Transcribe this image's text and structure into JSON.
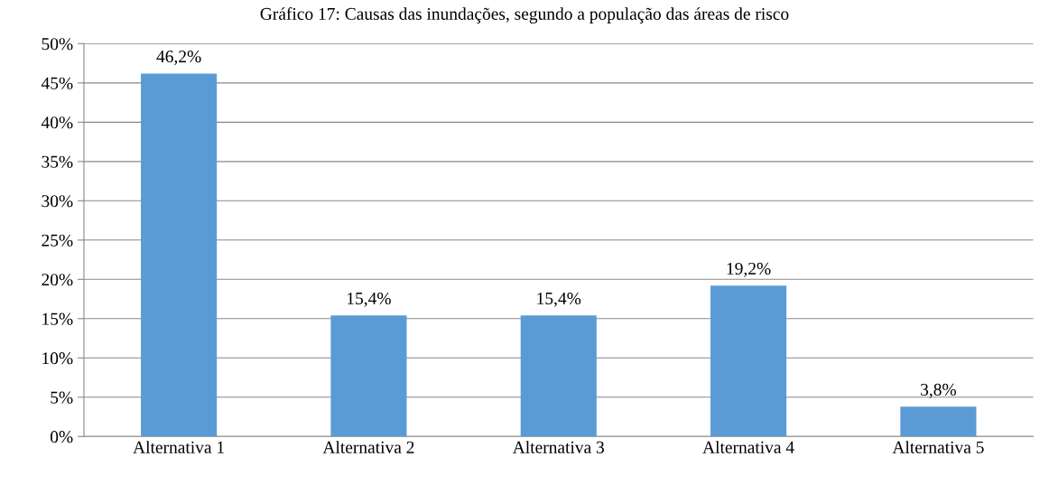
{
  "chart_data": {
    "type": "bar",
    "title": "Gráfico 17: Causas das inundações, segundo a população das áreas de risco",
    "categories": [
      "Alternativa 1",
      "Alternativa 2",
      "Alternativa 3",
      "Alternativa 4",
      "Alternativa 5"
    ],
    "values": [
      46.2,
      15.4,
      15.4,
      19.2,
      3.8
    ],
    "value_labels": [
      "46,2%",
      "15,4%",
      "15,4%",
      "19,2%",
      "3,8%"
    ],
    "color": "#5b9bd5",
    "ylim": [
      0,
      50
    ],
    "yticks": [
      {
        "value": 0,
        "label": "0%"
      },
      {
        "value": 5,
        "label": "5%"
      },
      {
        "value": 10,
        "label": "10%"
      },
      {
        "value": 15,
        "label": "15%"
      },
      {
        "value": 20,
        "label": "20%"
      },
      {
        "value": 25,
        "label": "25%"
      },
      {
        "value": 30,
        "label": "30%"
      },
      {
        "value": 35,
        "label": "35%"
      },
      {
        "value": 40,
        "label": "40%"
      },
      {
        "value": 45,
        "label": "45%"
      },
      {
        "value": 50,
        "label": "50%"
      }
    ],
    "grid": "y"
  }
}
